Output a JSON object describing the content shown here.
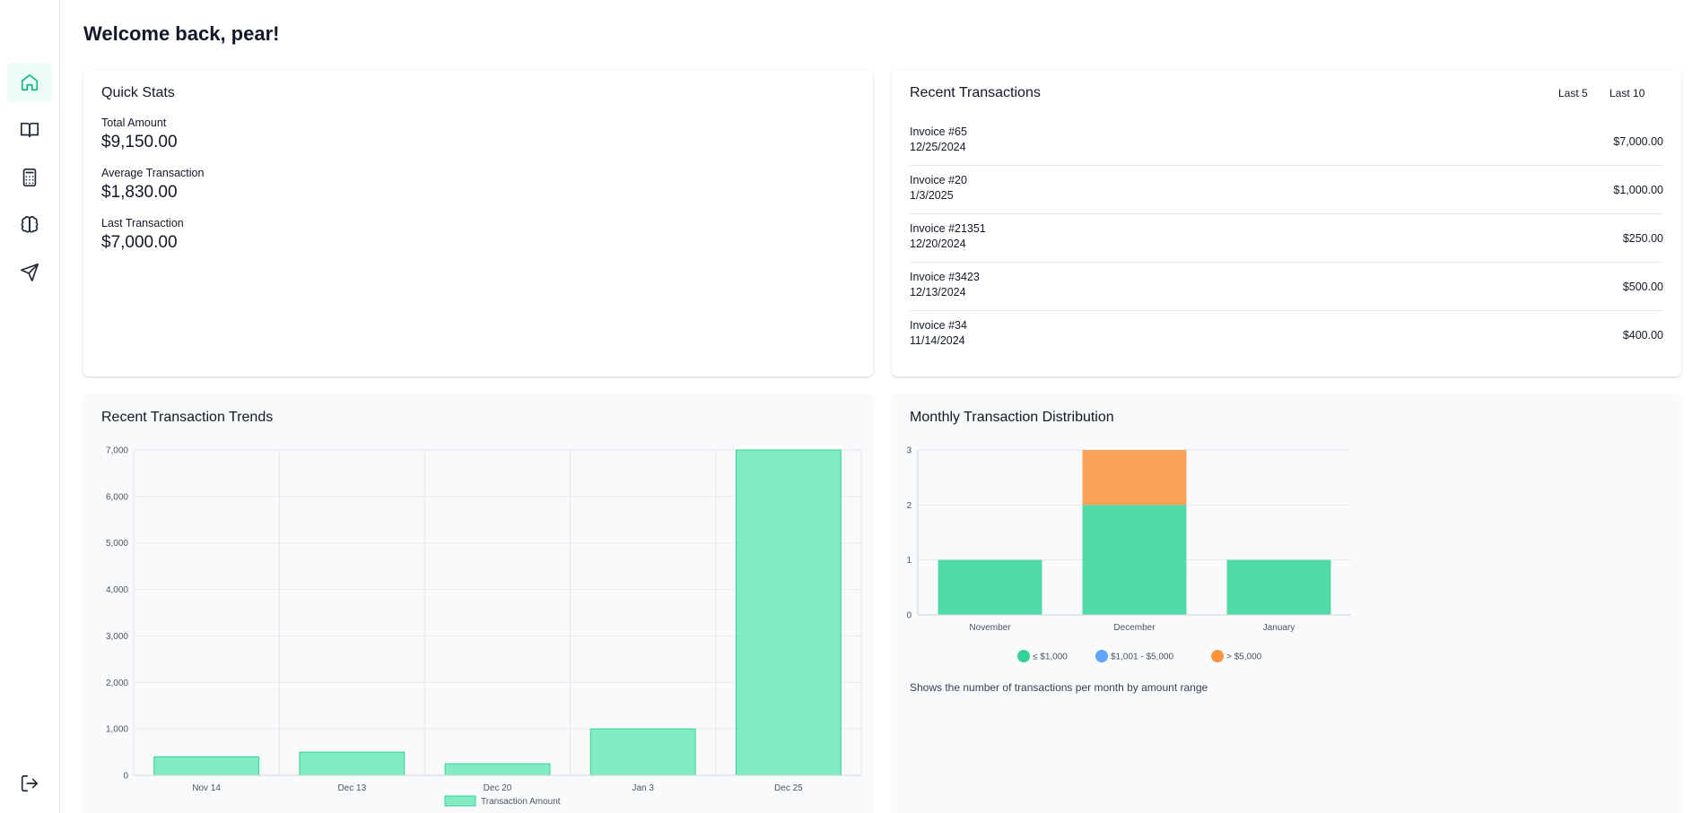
{
  "nav": {
    "items": [
      {
        "name": "home-icon",
        "active": true
      },
      {
        "name": "book-icon",
        "active": false
      },
      {
        "name": "calculator-icon",
        "active": false
      },
      {
        "name": "brain-icon",
        "active": false
      },
      {
        "name": "send-icon",
        "active": false
      }
    ],
    "logout": "logout-icon"
  },
  "header": {
    "welcome": "Welcome back, pear!"
  },
  "quick_stats": {
    "title": "Quick Stats",
    "items": [
      {
        "label": "Total Amount",
        "value": "$9,150.00"
      },
      {
        "label": "Average Transaction",
        "value": "$1,830.00"
      },
      {
        "label": "Last Transaction",
        "value": "$7,000.00"
      }
    ]
  },
  "recent_transactions": {
    "title": "Recent Transactions",
    "filters": [
      "Last 5",
      "Last 10"
    ],
    "rows": [
      {
        "invoice": "Invoice #65",
        "date": "12/25/2024",
        "amount": "$7,000.00"
      },
      {
        "invoice": "Invoice #20",
        "date": "1/3/2025",
        "amount": "$1,000.00"
      },
      {
        "invoice": "Invoice #21351",
        "date": "12/20/2024",
        "amount": "$250.00"
      },
      {
        "invoice": "Invoice #3423",
        "date": "12/13/2024",
        "amount": "$500.00"
      },
      {
        "invoice": "Invoice #34",
        "date": "11/14/2024",
        "amount": "$400.00"
      }
    ]
  },
  "chart_data": [
    {
      "type": "bar",
      "title": "Recent Transaction Trends",
      "categories": [
        "Nov 14",
        "Dec 13",
        "Dec 20",
        "Jan 3",
        "Dec 25"
      ],
      "series": [
        {
          "name": "Transaction Amount",
          "values": [
            400,
            500,
            250,
            1000,
            7000
          ],
          "color": "#6ee7b7"
        }
      ],
      "ylim": [
        0,
        7000
      ],
      "yticks": [
        "0",
        "1,000",
        "2,000",
        "3,000",
        "4,000",
        "5,000",
        "6,000",
        "7,000"
      ],
      "grid": true,
      "legend": "bottom"
    },
    {
      "type": "bar",
      "stacked": true,
      "title": "Monthly Transaction Distribution",
      "categories": [
        "November",
        "December",
        "January"
      ],
      "series": [
        {
          "name": "≤ $1,000",
          "values": [
            1,
            2,
            1
          ],
          "color": "#34d399"
        },
        {
          "name": "$1,001 - $5,000",
          "values": [
            0,
            0,
            0
          ],
          "color": "#60a5fa"
        },
        {
          "name": "> $5,000",
          "values": [
            0,
            1,
            0
          ],
          "color": "#fb923c"
        }
      ],
      "ylim": [
        0,
        3
      ],
      "yticks": [
        "0",
        "1",
        "2",
        "3"
      ],
      "grid": true,
      "legend": "bottom",
      "note": "Shows the number of transactions per month by amount range"
    }
  ]
}
